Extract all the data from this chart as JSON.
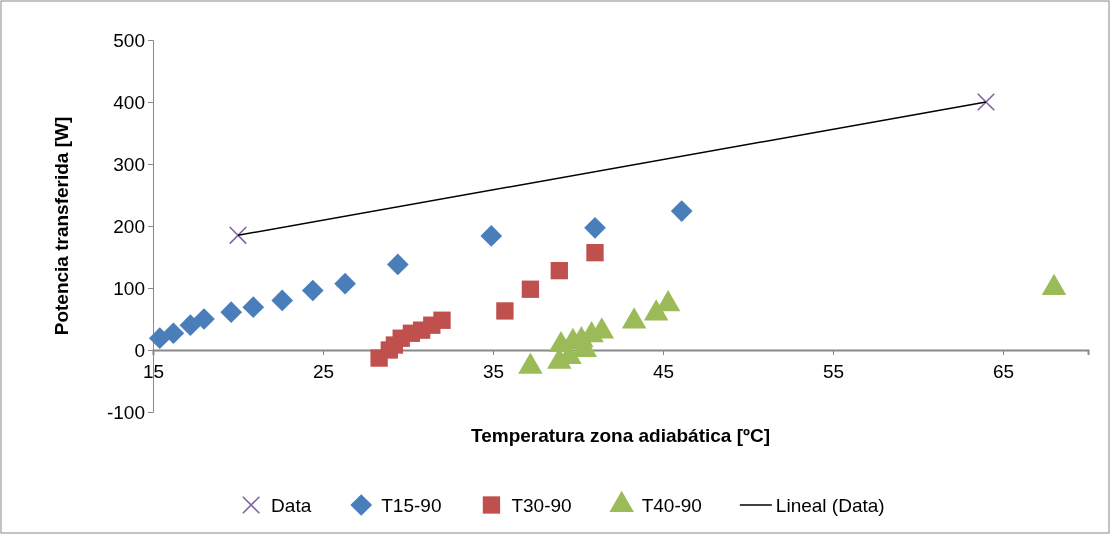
{
  "chart_data": {
    "type": "scatter",
    "xlabel": "Temperatura zona adiabática [ºC]",
    "ylabel": "Potencia transferida [W]",
    "xlim": [
      15,
      70
    ],
    "xticks": [
      15,
      25,
      35,
      45,
      55,
      65
    ],
    "ylim": [
      -100,
      500
    ],
    "yticks": [
      -100,
      0,
      100,
      200,
      300,
      400,
      500
    ],
    "grid": false,
    "legend": "bottom",
    "series": [
      {
        "name": "Data",
        "color": "#8064a2",
        "marker": "cross",
        "x": [
          20,
          64
        ],
        "values": [
          185,
          400
        ]
      },
      {
        "name": "T15-90",
        "color": "#4a7ebb",
        "marker": "diamond",
        "x": [
          15.4,
          16.2,
          17.2,
          18.0,
          19.6,
          20.9,
          22.6,
          24.4,
          26.3,
          29.4,
          34.9,
          41.0,
          46.1
        ],
        "values": [
          19,
          27,
          40,
          50,
          61,
          69,
          80,
          96,
          107,
          138,
          184,
          197,
          224
        ]
      },
      {
        "name": "T30-90",
        "color": "#c0504d",
        "marker": "square",
        "x": [
          28.3,
          28.9,
          29.2,
          29.6,
          30.2,
          30.8,
          31.4,
          32.0,
          35.7,
          37.2,
          38.9,
          41.0
        ],
        "values": [
          -13,
          0,
          8,
          19,
          27,
          32,
          40,
          48,
          63,
          98,
          128,
          157
        ]
      },
      {
        "name": "T40-90",
        "color": "#9bbb59",
        "marker": "triangle",
        "x": [
          37.2,
          38.9,
          39.0,
          39.5,
          39.7,
          40.2,
          40.4,
          40.8,
          41.4,
          43.3,
          44.6,
          45.3,
          68.0
        ],
        "values": [
          -27,
          -19,
          8,
          -11,
          13,
          16,
          0,
          24,
          30,
          46,
          59,
          74,
          100
        ]
      },
      {
        "name": "Lineal (Data)",
        "type": "line",
        "color": "#000000",
        "marker": "none",
        "line_style": "solid",
        "x": [
          20,
          64
        ],
        "values": [
          185,
          400
        ]
      }
    ]
  }
}
